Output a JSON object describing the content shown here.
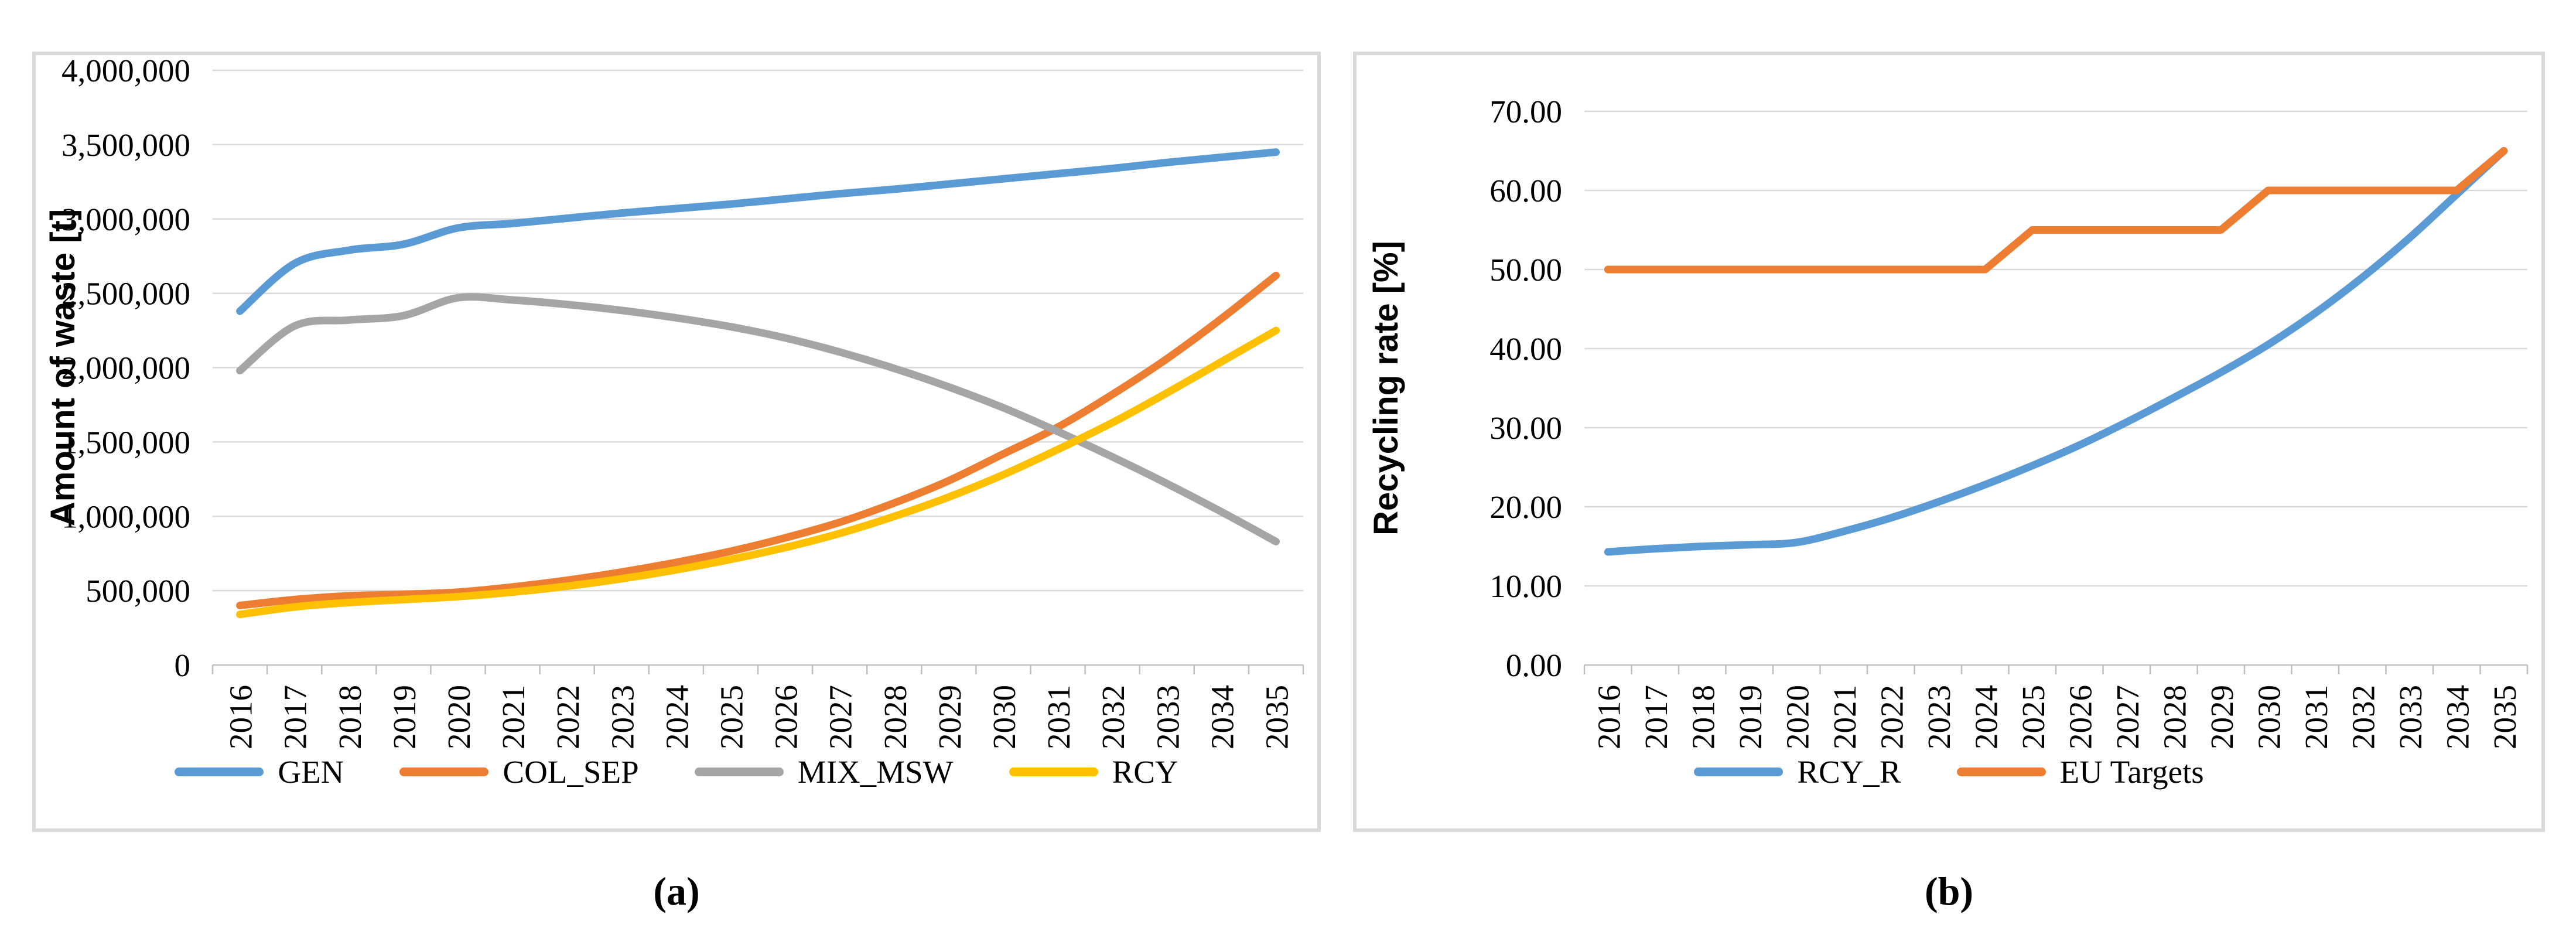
{
  "figure": {
    "captions": {
      "a": "(a)",
      "b": "(b)"
    },
    "background_color": "#FFFFFF",
    "panel_border_color": "#D9D9D9",
    "gridline_color": "#D9D9D9",
    "axis_line_color": "#BFBFBF",
    "text_color": "#000000"
  },
  "chart_data": [
    {
      "id": "waste-amount",
      "type": "line",
      "title": "",
      "xlabel": "",
      "ylabel": "Amount of waste [t]",
      "ylim": [
        0,
        4000000
      ],
      "ytick_step": 500000,
      "ytick_labels": [
        "4,000,000",
        "3,500,000",
        "3,000,000",
        "2,500,000",
        "2,000,000",
        "1,500,000",
        "1,000,000",
        "500,000",
        "0"
      ],
      "grid": true,
      "legend_position": "bottom",
      "categories": [
        "2016",
        "2017",
        "2018",
        "2019",
        "2020",
        "2021",
        "2022",
        "2023",
        "2024",
        "2025",
        "2026",
        "2027",
        "2028",
        "2029",
        "2030",
        "2031",
        "2032",
        "2033",
        "2034",
        "2035"
      ],
      "series": [
        {
          "name": "GEN",
          "color": "#5B9BD5",
          "smooth": true,
          "values": [
            2380000,
            2700000,
            2790000,
            2830000,
            2940000,
            2970000,
            3005000,
            3040000,
            3070000,
            3100000,
            3135000,
            3170000,
            3200000,
            3235000,
            3270000,
            3305000,
            3340000,
            3380000,
            3415000,
            3450000
          ]
        },
        {
          "name": "COL_SEP",
          "color": "#ED7D31",
          "smooth": true,
          "values": [
            400000,
            440000,
            465000,
            475000,
            490000,
            525000,
            570000,
            625000,
            690000,
            765000,
            855000,
            960000,
            1090000,
            1240000,
            1420000,
            1600000,
            1820000,
            2060000,
            2330000,
            2620000
          ]
        },
        {
          "name": "MIX_MSW",
          "color": "#A5A5A5",
          "smooth": true,
          "values": [
            1980000,
            2280000,
            2320000,
            2350000,
            2470000,
            2455000,
            2425000,
            2385000,
            2335000,
            2275000,
            2200000,
            2105000,
            1995000,
            1870000,
            1730000,
            1570000,
            1400000,
            1220000,
            1030000,
            830000
          ]
        },
        {
          "name": "RCY",
          "color": "#FFC000",
          "smooth": true,
          "values": [
            340000,
            390000,
            420000,
            440000,
            460000,
            490000,
            530000,
            580000,
            640000,
            710000,
            790000,
            885000,
            1000000,
            1130000,
            1280000,
            1450000,
            1630000,
            1830000,
            2040000,
            2250000
          ]
        }
      ]
    },
    {
      "id": "recycling-rate",
      "type": "line",
      "title": "",
      "xlabel": "",
      "ylabel": "Recycling rate [%]",
      "ylim": [
        0,
        70
      ],
      "ytick_step": 10,
      "ytick_labels": [
        "70.00",
        "60.00",
        "50.00",
        "40.00",
        "30.00",
        "20.00",
        "10.00",
        "0.00"
      ],
      "grid": true,
      "legend_position": "bottom",
      "categories": [
        "2016",
        "2017",
        "2018",
        "2019",
        "2020",
        "2021",
        "2022",
        "2023",
        "2024",
        "2025",
        "2026",
        "2027",
        "2028",
        "2029",
        "2030",
        "2031",
        "2032",
        "2033",
        "2034",
        "2035"
      ],
      "series": [
        {
          "name": "RCY_R",
          "color": "#5B9BD5",
          "smooth": true,
          "values": [
            14.3,
            14.7,
            15.0,
            15.2,
            15.5,
            16.9,
            18.6,
            20.6,
            22.8,
            25.2,
            27.8,
            30.7,
            33.8,
            37.0,
            40.5,
            44.5,
            49.0,
            54.0,
            59.5,
            65.0
          ]
        },
        {
          "name": "EU Targets",
          "color": "#ED7D31",
          "smooth": false,
          "values": [
            50,
            50,
            50,
            50,
            50,
            50,
            50,
            50,
            50,
            55,
            55,
            55,
            55,
            55,
            60,
            60,
            60,
            60,
            60,
            65
          ]
        }
      ]
    }
  ]
}
